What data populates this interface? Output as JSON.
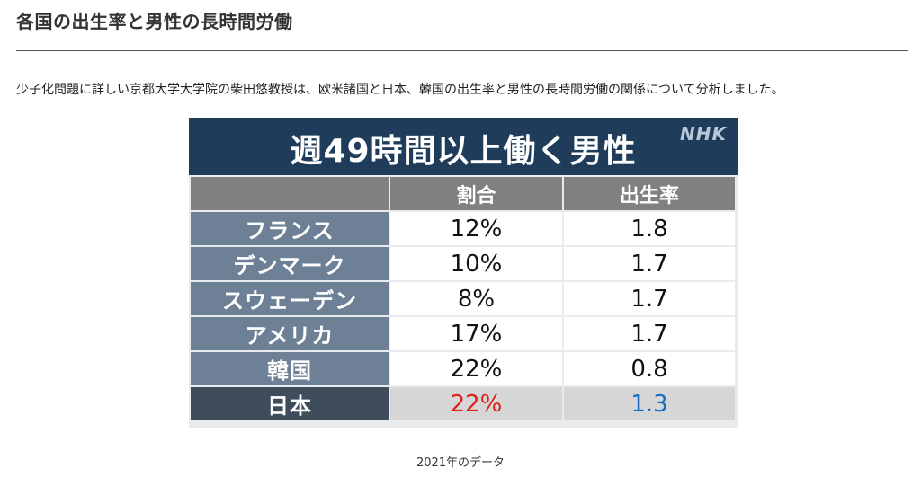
{
  "article": {
    "title": "各国の出生率と男性の長時間労働",
    "intro": "少子化問題に詳しい京都大学大学院の柴田悠教授は、欧米諸国と日本、韓国の出生率と男性の長時間労働の関係について分析しました。",
    "caption": "2021年のデータ"
  },
  "figure": {
    "title": "週49時間以上働く男性",
    "brand": "NHK",
    "colors": {
      "header": "#1f3d5a",
      "highlight_red": "#e0201b",
      "highlight_blue": "#1a6fbf"
    },
    "columns": [
      "",
      "割合",
      "出生率"
    ],
    "rows": [
      {
        "country": "フランス",
        "share": "12%",
        "birth_rate": "1.8"
      },
      {
        "country": "デンマーク",
        "share": "10%",
        "birth_rate": "1.7"
      },
      {
        "country": "スウェーデン",
        "share": "8%",
        "birth_rate": "1.7"
      },
      {
        "country": "アメリカ",
        "share": "17%",
        "birth_rate": "1.7"
      },
      {
        "country": "韓国",
        "share": "22%",
        "birth_rate": "0.8"
      },
      {
        "country": "日本",
        "share": "22%",
        "birth_rate": "1.3"
      }
    ]
  }
}
